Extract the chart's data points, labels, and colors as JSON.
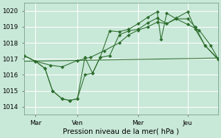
{
  "xlabel": "Pression niveau de la mer( hPa )",
  "background_color": "#c8e8d8",
  "grid_color": "#ffffff",
  "line_color": "#2d6e2d",
  "vline_color": "#5a7a6a",
  "ylim": [
    1013.5,
    1020.5
  ],
  "xlim": [
    0,
    10.2
  ],
  "yticks": [
    1014,
    1015,
    1016,
    1017,
    1018,
    1019,
    1020
  ],
  "xtick_labels": [
    "Mar",
    "Ven",
    "Mer",
    "Jeu"
  ],
  "xtick_positions": [
    0.6,
    2.8,
    6.0,
    8.6
  ],
  "trend_x": [
    0.0,
    10.2
  ],
  "trend_y": [
    1016.85,
    1017.05
  ],
  "s1_x": [
    0.0,
    0.6,
    1.4,
    2.0,
    2.8,
    3.5,
    4.2,
    5.0,
    5.5,
    6.0,
    6.5,
    7.0,
    7.5,
    8.0,
    8.6,
    9.2,
    9.8,
    10.2
  ],
  "s1_y": [
    1017.2,
    1016.85,
    1016.6,
    1016.5,
    1016.9,
    1017.1,
    1017.5,
    1018.0,
    1018.5,
    1018.8,
    1019.0,
    1019.3,
    1019.2,
    1019.5,
    1019.15,
    1018.8,
    1017.85,
    1017.0
  ],
  "s2_x": [
    0.0,
    0.6,
    1.1,
    1.5,
    2.0,
    2.4,
    2.8,
    3.2,
    3.6,
    4.0,
    4.5,
    5.0,
    5.5,
    6.0,
    6.5,
    7.0,
    7.5,
    8.0,
    8.6,
    9.0,
    9.5,
    10.2
  ],
  "s2_y": [
    1017.2,
    1016.85,
    1016.4,
    1015.0,
    1014.5,
    1014.4,
    1014.5,
    1016.0,
    1016.1,
    1017.1,
    1017.2,
    1018.5,
    1018.75,
    1018.85,
    1019.25,
    1019.55,
    1019.2,
    1019.55,
    1019.95,
    1018.85,
    1017.85,
    1017.0
  ],
  "s3_x": [
    0.0,
    0.6,
    1.1,
    1.5,
    2.0,
    2.4,
    2.8,
    3.2,
    3.6,
    4.0,
    4.5,
    5.0,
    5.5,
    6.0,
    6.5,
    7.0,
    7.2,
    7.5,
    8.0,
    8.6,
    9.0,
    9.5,
    10.2
  ],
  "s3_y": [
    1017.2,
    1016.85,
    1016.4,
    1015.0,
    1014.5,
    1014.4,
    1014.5,
    1017.1,
    1016.1,
    1017.1,
    1018.75,
    1018.7,
    1018.85,
    1019.2,
    1019.6,
    1019.95,
    1018.2,
    1019.85,
    1019.5,
    1019.5,
    1019.0,
    1017.85,
    1016.95
  ]
}
